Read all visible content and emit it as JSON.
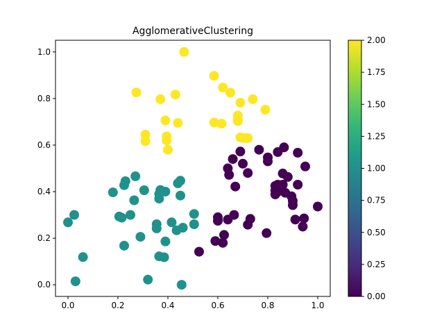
{
  "chart_data": {
    "type": "scatter",
    "title": "AgglomerativeClustering",
    "xlabel": "",
    "ylabel": "",
    "xlim": [
      -0.05,
      1.05
    ],
    "ylim": [
      -0.05,
      1.05
    ],
    "x_ticks": [
      0.0,
      0.2,
      0.4,
      0.6,
      0.8,
      1.0
    ],
    "x_tick_labels": [
      "0.0",
      "0.2",
      "0.4",
      "0.6",
      "0.8",
      "1.0"
    ],
    "y_ticks": [
      0.0,
      0.2,
      0.4,
      0.6,
      0.8,
      1.0
    ],
    "y_tick_labels": [
      "0.0",
      "0.2",
      "0.4",
      "0.6",
      "0.8",
      "1.0"
    ],
    "grid": false,
    "colormap": "viridis",
    "colorbar": {
      "min": 0.0,
      "max": 2.0,
      "ticks": [
        0.0,
        0.25,
        0.5,
        0.75,
        1.0,
        1.25,
        1.5,
        1.75,
        2.0
      ],
      "tick_labels": [
        "0.00",
        "0.25",
        "0.50",
        "0.75",
        "1.00",
        "1.25",
        "1.50",
        "1.75",
        "2.00"
      ],
      "stops": [
        "#440154",
        "#482878",
        "#3e4989",
        "#31688e",
        "#26828e",
        "#1f9e89",
        "#35b779",
        "#6ece58",
        "#b5de2b",
        "#fde725"
      ]
    },
    "series": [
      {
        "label_value": 2,
        "color": "#fde725",
        "points": [
          [
            0.465,
            1.0
          ],
          [
            0.585,
            0.897
          ],
          [
            0.62,
            0.847
          ],
          [
            0.65,
            0.825
          ],
          [
            0.274,
            0.826
          ],
          [
            0.43,
            0.817
          ],
          [
            0.37,
            0.797
          ],
          [
            0.74,
            0.797
          ],
          [
            0.69,
            0.782
          ],
          [
            0.79,
            0.752
          ],
          [
            0.68,
            0.727
          ],
          [
            0.68,
            0.71
          ],
          [
            0.39,
            0.706
          ],
          [
            0.68,
            0.703
          ],
          [
            0.44,
            0.695
          ],
          [
            0.585,
            0.697
          ],
          [
            0.615,
            0.692
          ],
          [
            0.31,
            0.645
          ],
          [
            0.69,
            0.633
          ],
          [
            0.705,
            0.63
          ],
          [
            0.72,
            0.63
          ],
          [
            0.395,
            0.637
          ],
          [
            0.395,
            0.62
          ],
          [
            0.31,
            0.617
          ],
          [
            0.4,
            0.58
          ]
        ]
      },
      {
        "label_value": 1,
        "color": "#21918c",
        "points": [
          [
            0.27,
            0.466
          ],
          [
            0.23,
            0.445
          ],
          [
            0.45,
            0.447
          ],
          [
            0.225,
            0.428
          ],
          [
            0.44,
            0.436
          ],
          [
            0.37,
            0.407
          ],
          [
            0.39,
            0.4
          ],
          [
            0.305,
            0.406
          ],
          [
            0.18,
            0.397
          ],
          [
            0.365,
            0.39
          ],
          [
            0.45,
            0.383
          ],
          [
            0.365,
            0.37
          ],
          [
            0.265,
            0.363
          ],
          [
            0.25,
            0.3
          ],
          [
            0.505,
            0.304
          ],
          [
            0.205,
            0.293
          ],
          [
            0.215,
            0.288
          ],
          [
            0.415,
            0.268
          ],
          [
            0.355,
            0.26
          ],
          [
            0.505,
            0.26
          ],
          [
            0.46,
            0.245
          ],
          [
            0.355,
            0.242
          ],
          [
            0.435,
            0.234
          ],
          [
            0.29,
            0.206
          ],
          [
            0.39,
            0.186
          ],
          [
            0.225,
            0.168
          ],
          [
            0.365,
            0.122
          ],
          [
            0.385,
            0.118
          ],
          [
            0.06,
            0.119
          ],
          [
            0.025,
            0.3
          ],
          [
            0.0,
            0.268
          ],
          [
            0.03,
            0.015
          ],
          [
            0.32,
            0.022
          ],
          [
            0.455,
            0.0
          ]
        ]
      },
      {
        "label_value": 0,
        "color": "#440154",
        "points": [
          [
            0.865,
            0.59
          ],
          [
            0.92,
            0.567
          ],
          [
            0.765,
            0.58
          ],
          [
            0.84,
            0.57
          ],
          [
            0.69,
            0.572
          ],
          [
            0.8,
            0.547
          ],
          [
            0.66,
            0.54
          ],
          [
            0.8,
            0.53
          ],
          [
            0.7,
            0.52
          ],
          [
            0.95,
            0.508
          ],
          [
            0.64,
            0.5
          ],
          [
            0.72,
            0.48
          ],
          [
            0.86,
            0.478
          ],
          [
            0.645,
            0.472
          ],
          [
            0.88,
            0.463
          ],
          [
            0.92,
            0.43
          ],
          [
            0.86,
            0.43
          ],
          [
            0.67,
            0.422
          ],
          [
            0.83,
            0.425
          ],
          [
            0.84,
            0.43
          ],
          [
            0.83,
            0.405
          ],
          [
            0.87,
            0.395
          ],
          [
            0.84,
            0.4
          ],
          [
            0.895,
            0.38
          ],
          [
            0.83,
            0.388
          ],
          [
            0.9,
            0.36
          ],
          [
            0.9,
            0.342
          ],
          [
            1.0,
            0.336
          ],
          [
            0.665,
            0.3
          ],
          [
            0.6,
            0.29
          ],
          [
            0.64,
            0.28
          ],
          [
            0.73,
            0.283
          ],
          [
            0.91,
            0.28
          ],
          [
            0.945,
            0.285
          ],
          [
            0.6,
            0.275
          ],
          [
            0.72,
            0.258
          ],
          [
            0.94,
            0.25
          ],
          [
            0.795,
            0.222
          ],
          [
            0.625,
            0.214
          ],
          [
            0.59,
            0.188
          ],
          [
            0.62,
            0.18
          ],
          [
            0.525,
            0.142
          ]
        ]
      }
    ]
  }
}
